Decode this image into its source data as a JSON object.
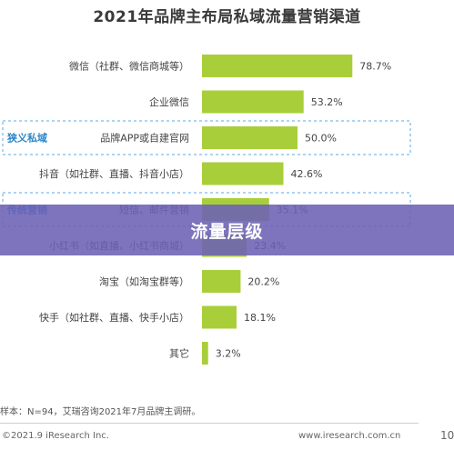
{
  "banner": {
    "text": "流量层级"
  },
  "chart_data": {
    "type": "bar",
    "orientation": "horizontal",
    "title": "2021年品牌主布局私域流量营销渠道",
    "categories": [
      "微信（社群、微信商城等）",
      "企业微信",
      "品牌APP或自建官网",
      "抖音（如社群、直播、抖音小店）",
      "短信、邮件营销",
      "小红书（如直播、小红书商城）",
      "淘宝（如淘宝群等）",
      "快手（如社群、直播、快手小店）",
      "其它"
    ],
    "values": [
      78.7,
      53.2,
      50.0,
      42.6,
      35.1,
      23.4,
      20.2,
      18.1,
      3.2
    ],
    "value_labels": [
      "78.7%",
      "53.2%",
      "50.0%",
      "42.6%",
      "35.1%",
      "23.4%",
      "20.2%",
      "18.1%",
      "3.2%"
    ],
    "xlim": [
      0,
      100
    ],
    "bar_color": "#a8cf3a",
    "groups": [
      {
        "label": "狭义私域",
        "border_color": "#5aa9e6"
      },
      {
        "label": "传统营销",
        "border_color": "#5aa9e6"
      }
    ],
    "grid": false,
    "legend": "none"
  },
  "footnote": "样本：N=94，艾瑞咨询2021年7月品牌主调研。",
  "copyright": "©2021.9 iResearch Inc.",
  "website": "www.iresearch.com.cn",
  "page_num": "10"
}
